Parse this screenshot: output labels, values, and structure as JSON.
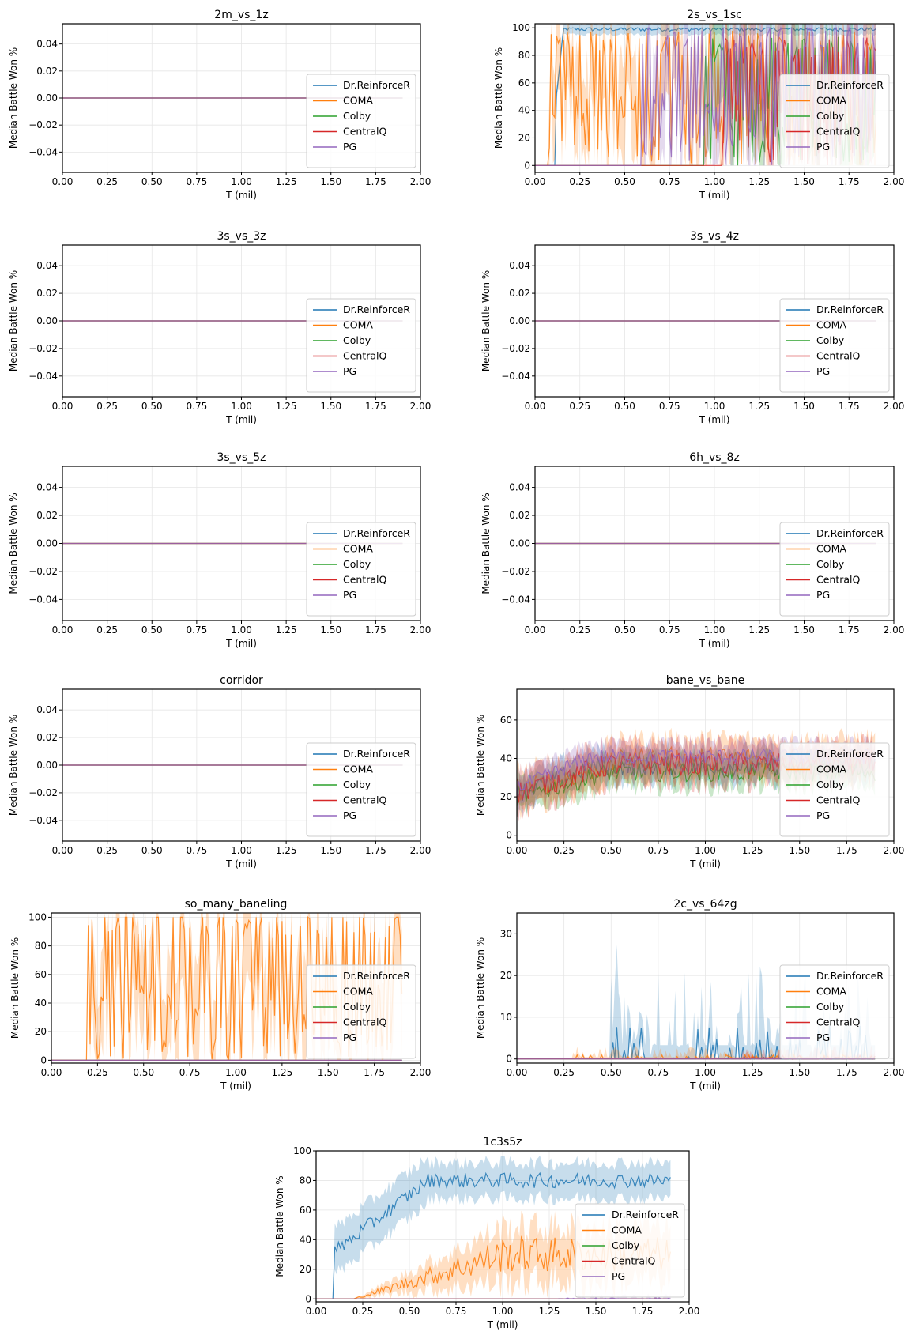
{
  "colors": {
    "Dr.ReinforceR": "#1f77b4",
    "COMA": "#ff7f0e",
    "Colby": "#2ca02c",
    "CentralQ": "#d62728",
    "PG": "#9467bd"
  },
  "chart_data": [
    {
      "type": "line",
      "title": "2m_vs_1z",
      "xlabel": "T (mil)",
      "ylabel": "Median Battle Won %",
      "xlim": [
        0,
        2
      ],
      "ylim": [
        -0.055,
        0.055
      ],
      "yticks": [
        -0.04,
        -0.02,
        0.0,
        0.02,
        0.04
      ],
      "xticks": [
        0.0,
        0.25,
        0.5,
        0.75,
        1.0,
        1.25,
        1.5,
        1.75,
        2.0
      ],
      "legend": "lower-right",
      "grid": true,
      "series": [
        {
          "name": "Dr.ReinforceR",
          "shape": "zero"
        },
        {
          "name": "COMA",
          "shape": "zero"
        },
        {
          "name": "Colby",
          "shape": "zero"
        },
        {
          "name": "CentralQ",
          "shape": "zero"
        },
        {
          "name": "PG",
          "shape": "zero"
        }
      ]
    },
    {
      "type": "line",
      "title": "2s_vs_1sc",
      "xlabel": "T (mil)",
      "ylabel": "Median Battle Won %",
      "xlim": [
        0,
        2
      ],
      "ylim": [
        -5,
        103
      ],
      "yticks": [
        0,
        20,
        40,
        60,
        80,
        100
      ],
      "xticks": [
        0.0,
        0.25,
        0.5,
        0.75,
        1.0,
        1.25,
        1.5,
        1.75,
        2.0
      ],
      "legend": "lower-right",
      "grid": true,
      "series": [
        {
          "name": "Dr.ReinforceR",
          "shape": "plateau",
          "start": 0.11,
          "end": 0.16,
          "level": 99,
          "noise": 1.5,
          "band": 4,
          "xmax": 1.9
        },
        {
          "name": "COMA",
          "shape": "erratic",
          "start": 0.08,
          "level": 85,
          "xmax": 1.9
        },
        {
          "name": "Colby",
          "shape": "erratic",
          "start": 0.95,
          "level": 80,
          "xmax": 1.9
        },
        {
          "name": "CentralQ",
          "shape": "erratic",
          "start": 1.05,
          "level": 80,
          "xmax": 1.9
        },
        {
          "name": "PG",
          "shape": "erratic",
          "start": 0.6,
          "level": 90,
          "xmax": 1.9
        }
      ]
    },
    {
      "type": "line",
      "title": "3s_vs_3z",
      "xlabel": "T (mil)",
      "ylabel": "Median Battle Won %",
      "xlim": [
        0,
        2
      ],
      "ylim": [
        -0.055,
        0.055
      ],
      "yticks": [
        -0.04,
        -0.02,
        0.0,
        0.02,
        0.04
      ],
      "xticks": [
        0.0,
        0.25,
        0.5,
        0.75,
        1.0,
        1.25,
        1.5,
        1.75,
        2.0
      ],
      "legend": "lower-right",
      "grid": true,
      "series": [
        {
          "name": "Dr.ReinforceR",
          "shape": "zero"
        },
        {
          "name": "COMA",
          "shape": "zero"
        },
        {
          "name": "Colby",
          "shape": "zero"
        },
        {
          "name": "CentralQ",
          "shape": "zero"
        },
        {
          "name": "PG",
          "shape": "zero"
        }
      ]
    },
    {
      "type": "line",
      "title": "3s_vs_4z",
      "xlabel": "T (mil)",
      "ylabel": "Median Battle Won %",
      "xlim": [
        0,
        2
      ],
      "ylim": [
        -0.055,
        0.055
      ],
      "yticks": [
        -0.04,
        -0.02,
        0.0,
        0.02,
        0.04
      ],
      "xticks": [
        0.0,
        0.25,
        0.5,
        0.75,
        1.0,
        1.25,
        1.5,
        1.75,
        2.0
      ],
      "legend": "lower-right",
      "grid": true,
      "series": [
        {
          "name": "Dr.ReinforceR",
          "shape": "zero"
        },
        {
          "name": "COMA",
          "shape": "zero"
        },
        {
          "name": "Colby",
          "shape": "zero"
        },
        {
          "name": "CentralQ",
          "shape": "zero"
        },
        {
          "name": "PG",
          "shape": "zero"
        }
      ]
    },
    {
      "type": "line",
      "title": "3s_vs_5z",
      "xlabel": "T (mil)",
      "ylabel": "Median Battle Won %",
      "xlim": [
        0,
        2
      ],
      "ylim": [
        -0.055,
        0.055
      ],
      "yticks": [
        -0.04,
        -0.02,
        0.0,
        0.02,
        0.04
      ],
      "xticks": [
        0.0,
        0.25,
        0.5,
        0.75,
        1.0,
        1.25,
        1.5,
        1.75,
        2.0
      ],
      "legend": "lower-right",
      "grid": true,
      "series": [
        {
          "name": "Dr.ReinforceR",
          "shape": "zero"
        },
        {
          "name": "COMA",
          "shape": "zero"
        },
        {
          "name": "Colby",
          "shape": "zero"
        },
        {
          "name": "CentralQ",
          "shape": "zero"
        },
        {
          "name": "PG",
          "shape": "zero"
        }
      ]
    },
    {
      "type": "line",
      "title": "6h_vs_8z",
      "xlabel": "T (mil)",
      "ylabel": "Median Battle Won %",
      "xlim": [
        0,
        2
      ],
      "ylim": [
        -0.055,
        0.055
      ],
      "yticks": [
        -0.04,
        -0.02,
        0.0,
        0.02,
        0.04
      ],
      "xticks": [
        0.0,
        0.25,
        0.5,
        0.75,
        1.0,
        1.25,
        1.5,
        1.75,
        2.0
      ],
      "legend": "lower-right",
      "grid": true,
      "series": [
        {
          "name": "Dr.ReinforceR",
          "shape": "zero"
        },
        {
          "name": "COMA",
          "shape": "zero"
        },
        {
          "name": "Colby",
          "shape": "zero"
        },
        {
          "name": "CentralQ",
          "shape": "zero"
        },
        {
          "name": "PG",
          "shape": "zero"
        }
      ]
    },
    {
      "type": "line",
      "title": "corridor",
      "xlabel": "T (mil)",
      "ylabel": "Median Battle Won %",
      "xlim": [
        0,
        2
      ],
      "ylim": [
        -0.055,
        0.055
      ],
      "yticks": [
        -0.04,
        -0.02,
        0.0,
        0.02,
        0.04
      ],
      "xticks": [
        0.0,
        0.25,
        0.5,
        0.75,
        1.0,
        1.25,
        1.5,
        1.75,
        2.0
      ],
      "legend": "lower-right",
      "grid": true,
      "series": [
        {
          "name": "Dr.ReinforceR",
          "shape": "zero"
        },
        {
          "name": "COMA",
          "shape": "zero"
        },
        {
          "name": "Colby",
          "shape": "zero"
        },
        {
          "name": "CentralQ",
          "shape": "zero"
        },
        {
          "name": "PG",
          "shape": "zero"
        }
      ]
    },
    {
      "type": "line",
      "title": "bane_vs_bane",
      "xlabel": "T (mil)",
      "ylabel": "Median Battle Won %",
      "xlim": [
        0,
        2
      ],
      "ylim": [
        -3,
        76
      ],
      "yticks": [
        0,
        20,
        40,
        60
      ],
      "xticks": [
        0.0,
        0.25,
        0.5,
        0.75,
        1.0,
        1.25,
        1.5,
        1.75,
        2.0
      ],
      "legend": "lower-right",
      "grid": true,
      "series": [
        {
          "name": "Dr.ReinforceR",
          "shape": "noisy",
          "start": 0,
          "end": 0.4,
          "level": 36,
          "noise": 5,
          "band": 8,
          "xmax": 1.9
        },
        {
          "name": "COMA",
          "shape": "noisy",
          "start": 0.05,
          "end": 0.6,
          "level": 40,
          "noise": 6,
          "band": 10,
          "xmax": 1.9
        },
        {
          "name": "Colby",
          "shape": "noisy",
          "start": 0,
          "end": 0.5,
          "level": 33,
          "noise": 5,
          "band": 8,
          "xmax": 1.9
        },
        {
          "name": "CentralQ",
          "shape": "noisy",
          "start": 0,
          "end": 0.5,
          "level": 37,
          "noise": 6,
          "band": 10,
          "xmax": 1.9
        },
        {
          "name": "PG",
          "shape": "noisy",
          "start": 0,
          "end": 0.4,
          "level": 41,
          "noise": 4,
          "band": 7,
          "xmax": 1.9
        }
      ]
    },
    {
      "type": "line",
      "title": "so_many_baneling",
      "xlabel": "T (mil)",
      "ylabel": "Median Battle Won %",
      "xlim": [
        0,
        2
      ],
      "ylim": [
        -2,
        103
      ],
      "yticks": [
        0,
        20,
        40,
        60,
        80,
        100
      ],
      "xticks": [
        0.0,
        0.25,
        0.5,
        0.75,
        1.0,
        1.25,
        1.5,
        1.75,
        2.0
      ],
      "legend": "lower-right",
      "grid": true,
      "series": [
        {
          "name": "Dr.ReinforceR",
          "shape": "zero"
        },
        {
          "name": "COMA",
          "shape": "erratic",
          "start": 0.2,
          "level": 90,
          "xmax": 1.9
        },
        {
          "name": "Colby",
          "shape": "zero"
        },
        {
          "name": "CentralQ",
          "shape": "zero"
        },
        {
          "name": "PG",
          "shape": "zero"
        }
      ]
    },
    {
      "type": "line",
      "title": "2c_vs_64zg",
      "xlabel": "T (mil)",
      "ylabel": "Median Battle Won %",
      "xlim": [
        0,
        2
      ],
      "ylim": [
        -1,
        35
      ],
      "yticks": [
        0,
        10,
        20,
        30
      ],
      "xticks": [
        0.0,
        0.25,
        0.5,
        0.75,
        1.0,
        1.25,
        1.5,
        1.75,
        2.0
      ],
      "legend": "lower-right",
      "grid": true,
      "series": [
        {
          "name": "Dr.ReinforceR",
          "shape": "sparse",
          "start": 0.5,
          "level": 8,
          "band": 22,
          "xmax": 1.9
        },
        {
          "name": "COMA",
          "shape": "sparse",
          "start": 0.3,
          "level": 1,
          "band": 3,
          "xmax": 1.9
        },
        {
          "name": "Colby",
          "shape": "zero"
        },
        {
          "name": "CentralQ",
          "shape": "sparse",
          "start": 1.2,
          "level": 1,
          "band": 3,
          "xmax": 1.9
        },
        {
          "name": "PG",
          "shape": "zero"
        }
      ]
    },
    {
      "type": "line",
      "title": "1c3s5z",
      "xlabel": "T (mil)",
      "ylabel": "Median Battle Won %",
      "xlim": [
        0,
        2
      ],
      "ylim": [
        -2,
        100
      ],
      "yticks": [
        0,
        20,
        40,
        60,
        80,
        100
      ],
      "xticks": [
        0.0,
        0.25,
        0.5,
        0.75,
        1.0,
        1.25,
        1.5,
        1.75,
        2.0
      ],
      "legend": "lower-right",
      "grid": true,
      "series": [
        {
          "name": "Dr.ReinforceR",
          "shape": "plateau",
          "start": 0.1,
          "end": 0.6,
          "level": 80,
          "noise": 5,
          "band": 12,
          "xmax": 1.9
        },
        {
          "name": "COMA",
          "shape": "ramp",
          "start": 0.2,
          "end": 1.0,
          "level": 30,
          "noise": 12,
          "band": 18,
          "xmax": 1.9
        },
        {
          "name": "Colby",
          "shape": "zero"
        },
        {
          "name": "CentralQ",
          "shape": "zero"
        },
        {
          "name": "PG",
          "shape": "sparse",
          "start": 1.3,
          "level": 1,
          "band": 4,
          "xmax": 1.9
        }
      ]
    }
  ]
}
